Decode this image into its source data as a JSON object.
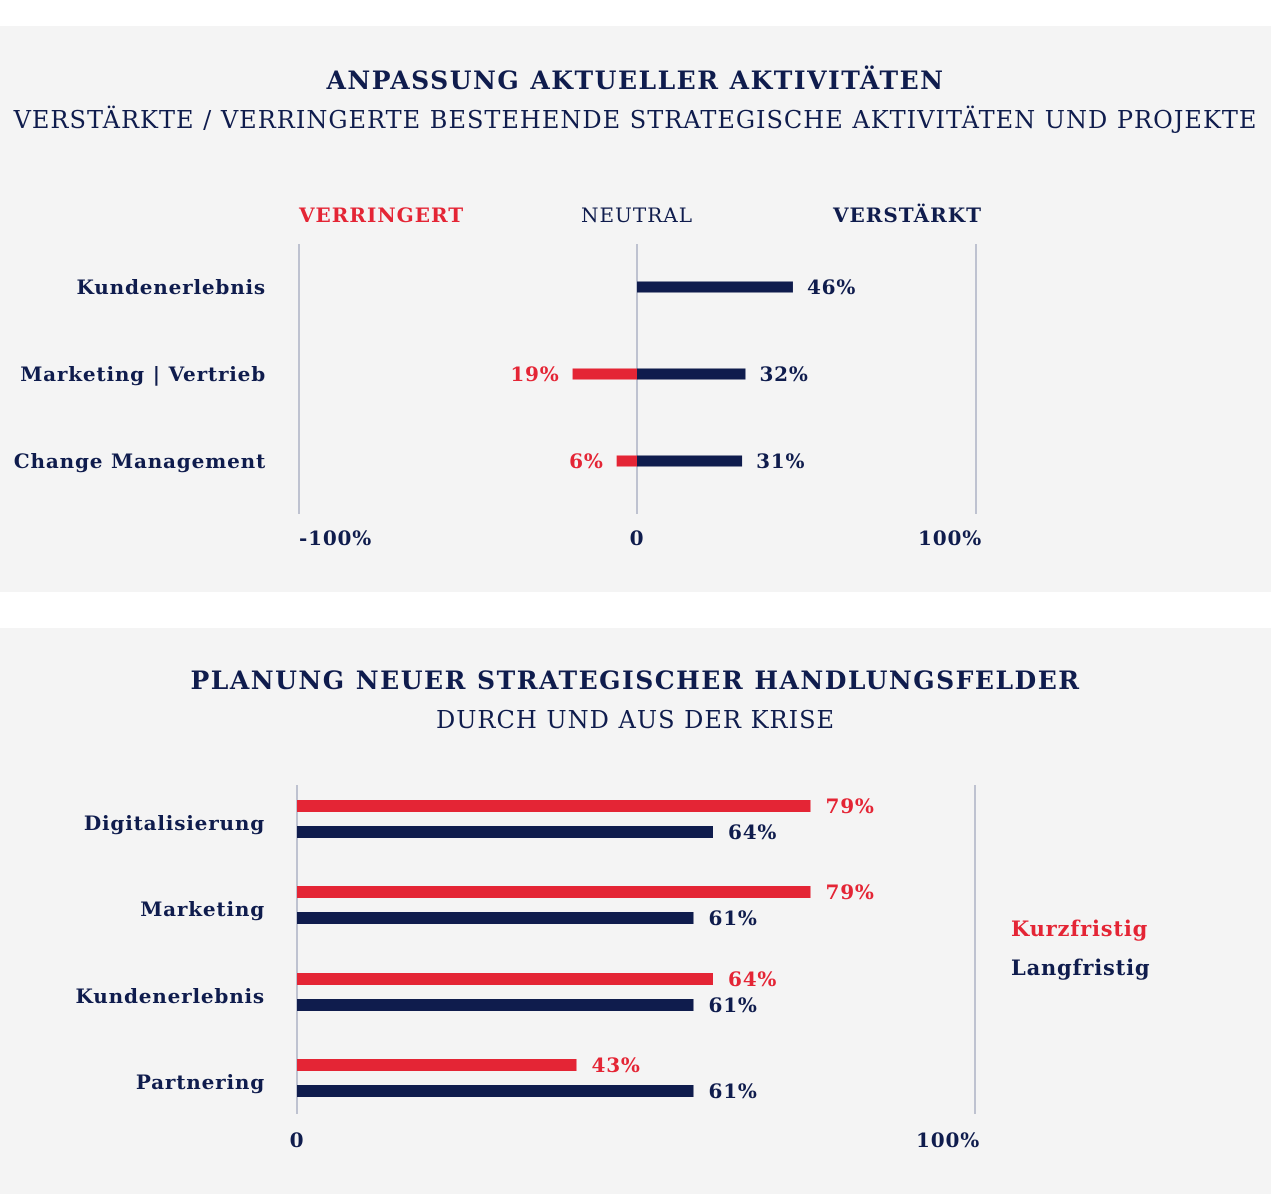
{
  "colors": {
    "navy": "#0f1c4d",
    "red": "#e42535",
    "axis": "#9aa0b8",
    "panel": "#f4f4f4"
  },
  "chart_data": [
    {
      "type": "bar",
      "orientation": "horizontal-diverging",
      "title": "ANPASSUNG AKTUELLER AKTIVITÄTEN",
      "subtitle": "VERSTÄRKTE / VERRINGERTE BESTEHENDE STRATEGISCHE AKTIVITÄTEN UND PROJEKTE",
      "header_labels": {
        "left": "VERRINGERT",
        "center": "NEUTRAL",
        "right": "VERSTÄRKT"
      },
      "categories": [
        "Kundenerlebnis",
        "Marketing | Vertrieb",
        "Change Management"
      ],
      "series": [
        {
          "name": "VERRINGERT",
          "values": [
            null,
            -19,
            -6
          ],
          "labels": [
            "",
            "19%",
            "6%"
          ]
        },
        {
          "name": "VERSTÄRKT",
          "values": [
            46,
            32,
            31
          ],
          "labels": [
            "46%",
            "32%",
            "31%"
          ]
        }
      ],
      "xlim": [
        -100,
        100
      ],
      "tick_labels": [
        "-100%",
        "0",
        "100%"
      ]
    },
    {
      "type": "bar",
      "orientation": "horizontal-grouped",
      "title": "PLANUNG NEUER STRATEGISCHER HANDLUNGSFELDER",
      "subtitle": "DURCH UND AUS DER KRISE",
      "categories": [
        "Digitalisierung",
        "Marketing",
        "Kundenerlebnis",
        "Partnering"
      ],
      "series": [
        {
          "name": "Kurzfristig",
          "values": [
            79,
            79,
            64,
            43
          ],
          "labels": [
            "79%",
            "79%",
            "64%",
            "43%"
          ]
        },
        {
          "name": "Langfristig",
          "values": [
            64,
            61,
            61,
            61
          ],
          "labels": [
            "64%",
            "61%",
            "61%",
            "61%"
          ]
        }
      ],
      "xlim": [
        0,
        100
      ],
      "tick_labels": [
        "0",
        "100%"
      ],
      "legend_position": "right"
    }
  ]
}
